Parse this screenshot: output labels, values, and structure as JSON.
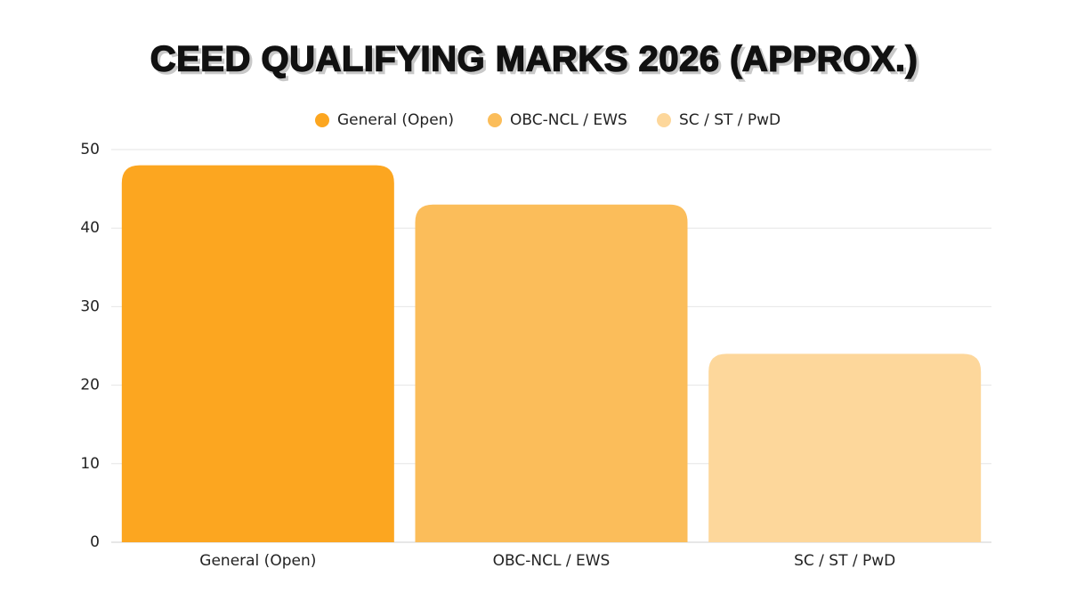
{
  "chart_data": {
    "type": "bar",
    "title": "CEED QUALIFYING MARKS 2026 (APPROX.)",
    "categories": [
      "General (Open)",
      "OBC-NCL / EWS",
      "SC / ST / PwD"
    ],
    "values": [
      48,
      43,
      24
    ],
    "colors": [
      "#FCA620",
      "#FBBD5A",
      "#FDD79B"
    ],
    "ylim": [
      0,
      50
    ],
    "yticks": [
      0,
      10,
      20,
      30,
      40,
      50
    ],
    "grid": true,
    "legend": "top"
  }
}
